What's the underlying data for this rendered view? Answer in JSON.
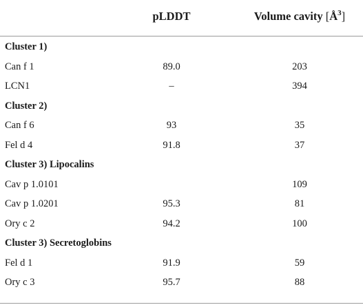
{
  "header": {
    "col_plddt": "pLDDT",
    "col_volume_text": "Volume cavity ",
    "col_volume_open": "[",
    "col_volume_unit": "Å",
    "col_volume_exp": "3",
    "col_volume_close": "]"
  },
  "rows": [
    {
      "type": "cluster",
      "name": "Cluster 1)"
    },
    {
      "type": "data",
      "name": "Can f 1",
      "plddt": "89.0",
      "volume": "203"
    },
    {
      "type": "data",
      "name": "LCN1",
      "plddt": "–",
      "volume": "394"
    },
    {
      "type": "cluster",
      "name": "Cluster 2)"
    },
    {
      "type": "data",
      "name": "Can f 6",
      "plddt": "93",
      "volume": "35"
    },
    {
      "type": "data",
      "name": "Fel d 4",
      "plddt": "91.8",
      "volume": "37"
    },
    {
      "type": "cluster",
      "name": "Cluster 3) Lipocalins"
    },
    {
      "type": "data",
      "name": "Cav p 1.0101",
      "plddt": "",
      "volume": "109"
    },
    {
      "type": "data",
      "name": "Cav p 1.0201",
      "plddt": "95.3",
      "volume": "81"
    },
    {
      "type": "data",
      "name": "Ory c 2",
      "plddt": "94.2",
      "volume": "100"
    },
    {
      "type": "cluster",
      "name": "Cluster 3) Secretoglobins"
    },
    {
      "type": "data",
      "name": "Fel d 1",
      "plddt": "91.9",
      "volume": "59"
    },
    {
      "type": "data",
      "name": "Ory c 3",
      "plddt": "95.7",
      "volume": "88"
    }
  ]
}
